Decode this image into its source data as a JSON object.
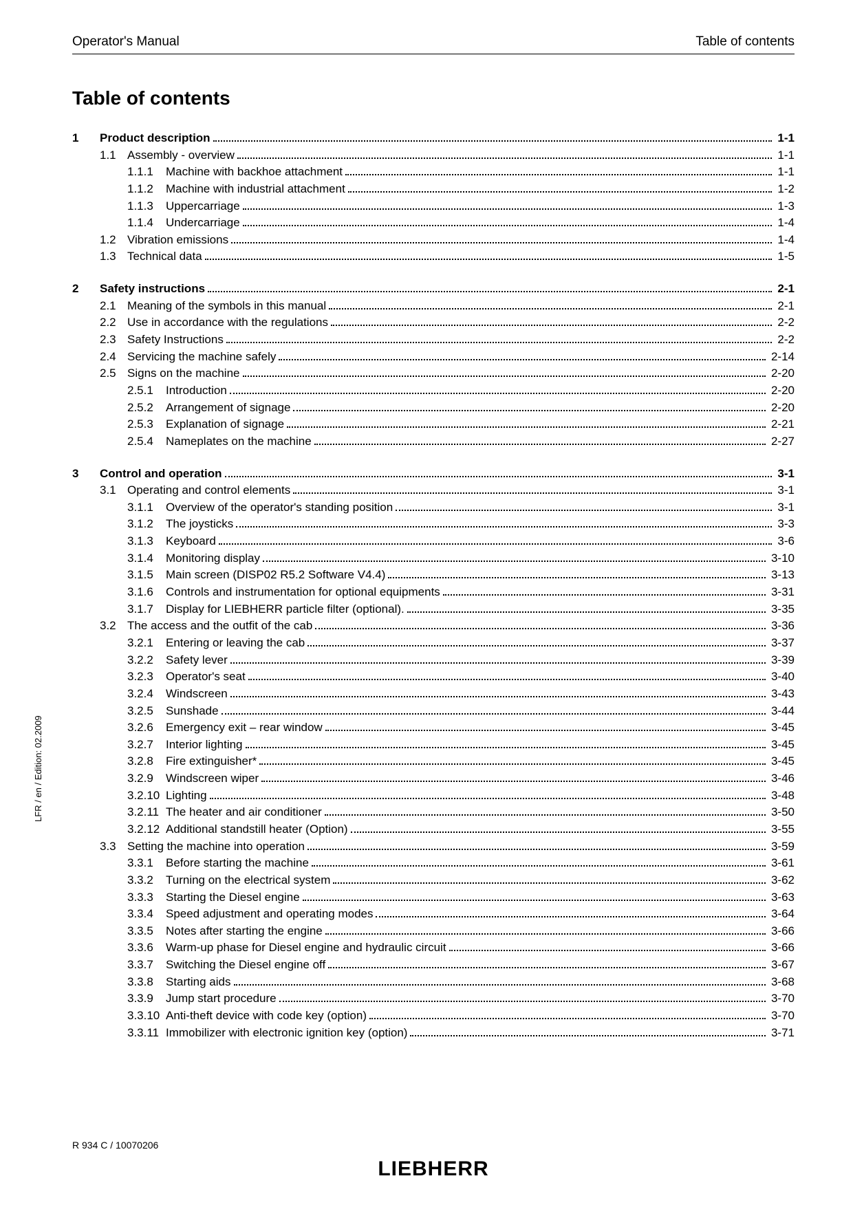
{
  "header": {
    "left": "Operator's Manual",
    "right": "Table of contents"
  },
  "title": "Table of contents",
  "side_text": "LFR / en / Edition: 02.2009",
  "footer": {
    "ref": "R 934 C / 10070206",
    "logo": "LIEBHERR"
  },
  "toc": [
    {
      "level": 1,
      "num": "1",
      "title": "Product description",
      "page": "1-1"
    },
    {
      "level": 2,
      "num": "1.1",
      "title": "Assembly - overview",
      "page": "1-1"
    },
    {
      "level": 3,
      "num": "1.1.1",
      "title": "Machine with backhoe attachment",
      "page": "1-1"
    },
    {
      "level": 3,
      "num": "1.1.2",
      "title": "Machine with industrial attachment",
      "page": "1-2"
    },
    {
      "level": 3,
      "num": "1.1.3",
      "title": "Uppercarriage",
      "page": "1-3"
    },
    {
      "level": 3,
      "num": "1.1.4",
      "title": "Undercarriage",
      "page": "1-4"
    },
    {
      "level": 2,
      "num": "1.2",
      "title": "Vibration emissions",
      "page": "1-4"
    },
    {
      "level": 2,
      "num": "1.3",
      "title": "Technical data",
      "page": "1-5"
    },
    {
      "level": 1,
      "num": "2",
      "title": "Safety instructions",
      "page": "2-1"
    },
    {
      "level": 2,
      "num": "2.1",
      "title": "Meaning of the symbols in this manual",
      "page": "2-1"
    },
    {
      "level": 2,
      "num": "2.2",
      "title": "Use in accordance with the regulations",
      "page": "2-2"
    },
    {
      "level": 2,
      "num": "2.3",
      "title": "Safety Instructions",
      "page": "2-2"
    },
    {
      "level": 2,
      "num": "2.4",
      "title": "Servicing the machine safely",
      "page": "2-14"
    },
    {
      "level": 2,
      "num": "2.5",
      "title": "Signs on the machine",
      "page": "2-20"
    },
    {
      "level": 3,
      "num": "2.5.1",
      "title": "Introduction",
      "page": "2-20"
    },
    {
      "level": 3,
      "num": "2.5.2",
      "title": "Arrangement of signage",
      "page": "2-20"
    },
    {
      "level": 3,
      "num": "2.5.3",
      "title": "Explanation of signage",
      "page": "2-21"
    },
    {
      "level": 3,
      "num": "2.5.4",
      "title": "Nameplates on the machine",
      "page": "2-27"
    },
    {
      "level": 1,
      "num": "3",
      "title": "Control and operation",
      "page": "3-1"
    },
    {
      "level": 2,
      "num": "3.1",
      "title": "Operating and control elements",
      "page": "3-1"
    },
    {
      "level": 3,
      "num": "3.1.1",
      "title": "Overview of the operator's standing position",
      "page": "3-1"
    },
    {
      "level": 3,
      "num": "3.1.2",
      "title": "The joysticks",
      "page": "3-3"
    },
    {
      "level": 3,
      "num": "3.1.3",
      "title": "Keyboard",
      "page": "3-6"
    },
    {
      "level": 3,
      "num": "3.1.4",
      "title": "Monitoring display",
      "page": "3-10"
    },
    {
      "level": 3,
      "num": "3.1.5",
      "title": "Main screen (DISP02 R5.2 Software V4.4)",
      "page": "3-13"
    },
    {
      "level": 3,
      "num": "3.1.6",
      "title": "Controls and instrumentation for optional equipments",
      "page": "3-31"
    },
    {
      "level": 3,
      "num": "3.1.7",
      "title": "Display for LIEBHERR particle filter (optional).",
      "page": "3-35"
    },
    {
      "level": 2,
      "num": "3.2",
      "title": "The access and the outfit of the cab",
      "page": "3-36"
    },
    {
      "level": 3,
      "num": "3.2.1",
      "title": "Entering or leaving the cab",
      "page": "3-37"
    },
    {
      "level": 3,
      "num": "3.2.2",
      "title": "Safety lever",
      "page": "3-39"
    },
    {
      "level": 3,
      "num": "3.2.3",
      "title": "Operator's seat",
      "page": "3-40"
    },
    {
      "level": 3,
      "num": "3.2.4",
      "title": "Windscreen",
      "page": "3-43"
    },
    {
      "level": 3,
      "num": "3.2.5",
      "title": "Sunshade",
      "page": "3-44"
    },
    {
      "level": 3,
      "num": "3.2.6",
      "title": "Emergency exit – rear window",
      "page": "3-45"
    },
    {
      "level": 3,
      "num": "3.2.7",
      "title": "Interior lighting",
      "page": "3-45"
    },
    {
      "level": 3,
      "num": "3.2.8",
      "title": "Fire extinguisher*",
      "page": "3-45"
    },
    {
      "level": 3,
      "num": "3.2.9",
      "title": "Windscreen wiper",
      "page": "3-46"
    },
    {
      "level": 3,
      "num": "3.2.10",
      "title": "Lighting",
      "page": "3-48"
    },
    {
      "level": 3,
      "num": "3.2.11",
      "title": "The heater and air conditioner",
      "page": "3-50"
    },
    {
      "level": 3,
      "num": "3.2.12",
      "title": "Additional standstill heater (Option)",
      "page": "3-55"
    },
    {
      "level": 2,
      "num": "3.3",
      "title": "Setting the machine into operation",
      "page": "3-59"
    },
    {
      "level": 3,
      "num": "3.3.1",
      "title": "Before starting the machine",
      "page": "3-61"
    },
    {
      "level": 3,
      "num": "3.3.2",
      "title": "Turning on the electrical system",
      "page": "3-62"
    },
    {
      "level": 3,
      "num": "3.3.3",
      "title": "Starting the Diesel engine",
      "page": "3-63"
    },
    {
      "level": 3,
      "num": "3.3.4",
      "title": "Speed adjustment and operating modes",
      "page": "3-64"
    },
    {
      "level": 3,
      "num": "3.3.5",
      "title": "Notes after starting the engine",
      "page": "3-66"
    },
    {
      "level": 3,
      "num": "3.3.6",
      "title": "Warm-up phase for Diesel engine and hydraulic circuit",
      "page": "3-66"
    },
    {
      "level": 3,
      "num": "3.3.7",
      "title": "Switching the Diesel engine off",
      "page": "3-67"
    },
    {
      "level": 3,
      "num": "3.3.8",
      "title": "Starting aids",
      "page": "3-68"
    },
    {
      "level": 3,
      "num": "3.3.9",
      "title": "Jump start procedure",
      "page": "3-70"
    },
    {
      "level": 3,
      "num": "3.3.10",
      "title": "Anti-theft device with code key (option)",
      "page": "3-70"
    },
    {
      "level": 3,
      "num": "3.3.11",
      "title": "Immobilizer with electronic ignition key (option)",
      "page": "3-71"
    }
  ]
}
